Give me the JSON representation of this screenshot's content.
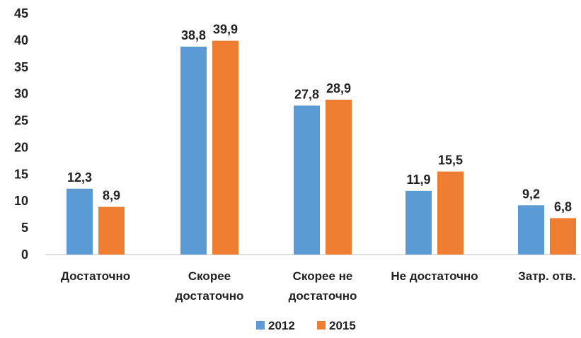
{
  "chart_data": {
    "type": "bar",
    "title": "",
    "xlabel": "",
    "ylabel": "",
    "ylim": [
      0,
      45
    ],
    "yticks": [
      0,
      5,
      10,
      15,
      20,
      25,
      30,
      35,
      40,
      45
    ],
    "grid": false,
    "legend_position": "bottom",
    "categories": [
      [
        "Достаточно"
      ],
      [
        "Скорее",
        "достаточно"
      ],
      [
        "Скорее не",
        "достаточно"
      ],
      [
        "Не достаточно"
      ],
      [
        "Затр. отв."
      ]
    ],
    "series": [
      {
        "name": "2012",
        "color": "#5B9BD5",
        "values": [
          12.3,
          38.8,
          27.8,
          11.9,
          9.2
        ],
        "labels": [
          "12,3",
          "38,8",
          "27,8",
          "11,9",
          "9,2"
        ]
      },
      {
        "name": "2015",
        "color": "#ED7D31",
        "values": [
          8.9,
          39.9,
          28.9,
          15.5,
          6.8
        ],
        "labels": [
          "8,9",
          "39,9",
          "28,9",
          "15,5",
          "6,8"
        ]
      }
    ]
  }
}
